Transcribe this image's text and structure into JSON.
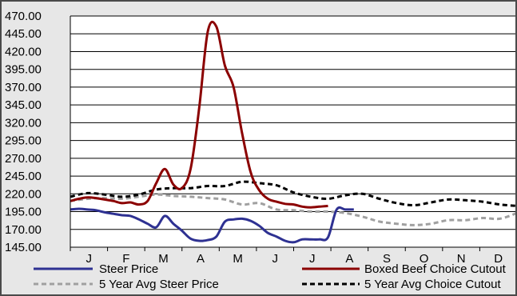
{
  "chart_data": {
    "type": "line",
    "title": "",
    "xlabel": "",
    "ylabel": "",
    "ylim": [
      145,
      470
    ],
    "yticks": [
      145,
      170,
      195,
      220,
      245,
      270,
      295,
      320,
      345,
      370,
      395,
      420,
      445,
      470
    ],
    "ytick_labels": [
      "145.00",
      "170.00",
      "195.00",
      "220.00",
      "245.00",
      "270.00",
      "295.00",
      "320.00",
      "345.00",
      "370.00",
      "395.00",
      "420.00",
      "445.00",
      "470.00"
    ],
    "x_unit": "week",
    "xlim": [
      0,
      52
    ],
    "months": [
      "J",
      "F",
      "M",
      "A",
      "M",
      "J",
      "J",
      "A",
      "S",
      "O",
      "N",
      "D"
    ],
    "grid": "horizontal",
    "legend_position": "bottom",
    "series": [
      {
        "name": "Steer Price",
        "color": "#2e3192",
        "dash": "solid",
        "x": [
          0,
          1,
          2,
          3,
          4,
          5,
          6,
          7,
          8,
          9,
          10,
          11,
          12,
          13,
          14,
          15,
          16,
          17,
          18,
          19,
          20,
          21,
          22,
          23,
          24,
          25,
          26,
          27,
          28,
          29,
          30,
          31,
          32,
          33
        ],
        "y": [
          198,
          199,
          198,
          197,
          194,
          192,
          190,
          189,
          184,
          178,
          173,
          189,
          178,
          168,
          157,
          154,
          155,
          160,
          181,
          184,
          185,
          182,
          175,
          165,
          160,
          154,
          152,
          156,
          156,
          156,
          159,
          198,
          198,
          198
        ]
      },
      {
        "name": "Boxed Beef Choice Cutout",
        "color": "#8b0000",
        "dash": "solid",
        "x": [
          0,
          1,
          2,
          3,
          4,
          5,
          6,
          7,
          8,
          9,
          10,
          11,
          12,
          13,
          14,
          15,
          16,
          17,
          18,
          19,
          20,
          21,
          22,
          23,
          24,
          25,
          26,
          27,
          28,
          29,
          30
        ],
        "y": [
          210,
          213,
          215,
          214,
          212,
          210,
          207,
          208,
          205,
          210,
          235,
          255,
          233,
          228,
          255,
          340,
          448,
          455,
          400,
          370,
          305,
          250,
          225,
          213,
          209,
          206,
          205,
          202,
          201,
          202,
          203
        ]
      },
      {
        "name": "5 Year Avg Steer Price",
        "color": "#a0a0a0",
        "dash": "6,4",
        "x": [
          0,
          2,
          4,
          6,
          8,
          10,
          12,
          14,
          16,
          18,
          20,
          22,
          24,
          26,
          28,
          30,
          32,
          34,
          36,
          38,
          40,
          42,
          44,
          46,
          48,
          50,
          52
        ],
        "y": [
          210,
          213,
          214,
          213,
          216,
          219,
          217,
          216,
          214,
          212,
          205,
          207,
          198,
          197,
          195,
          195,
          193,
          188,
          181,
          178,
          176,
          178,
          183,
          183,
          186,
          185,
          193
        ]
      },
      {
        "name": "5 Year Avg Choice Cutout",
        "color": "#000000",
        "dash": "6,4",
        "x": [
          0,
          2,
          4,
          6,
          8,
          10,
          12,
          14,
          16,
          18,
          20,
          22,
          24,
          26,
          28,
          30,
          32,
          34,
          36,
          38,
          40,
          42,
          44,
          46,
          48,
          50,
          52
        ],
        "y": [
          216,
          221,
          219,
          216,
          219,
          226,
          228,
          228,
          231,
          231,
          237,
          235,
          232,
          222,
          216,
          213,
          218,
          220,
          213,
          207,
          204,
          208,
          212,
          211,
          209,
          205,
          203
        ]
      }
    ]
  }
}
